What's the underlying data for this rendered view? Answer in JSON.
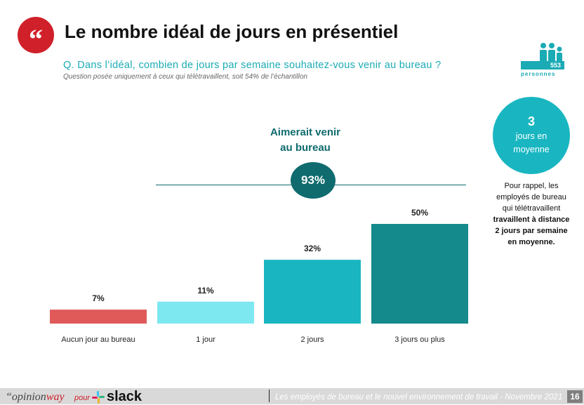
{
  "header": {
    "title": "Le nombre idéal de jours en présentiel",
    "question": "Q. Dans l’idéal, combien de jours par semaine souhaitez-vous venir au bureau ?",
    "note": "Question posée uniquement à ceux qui télétravaillent, soit 54% de l’échantillon",
    "sample_count": "553",
    "sample_label": "personnes"
  },
  "aggregate": {
    "label_line1": "Aimerait venir",
    "label_line2": "au bureau",
    "value": "93%"
  },
  "average": {
    "number": "3",
    "line1": "jours en",
    "line2": "moyenne"
  },
  "recall": {
    "normal": "Pour rappel, les employés de bureau qui télétravaillent",
    "bold": "travaillent à distance 2 jours par semaine en moyenne."
  },
  "chart_data": {
    "type": "bar",
    "categories": [
      "Aucun jour au bureau",
      "1 jour",
      "2 jours",
      "3 jours ou plus"
    ],
    "values": [
      7,
      11,
      32,
      50
    ],
    "labels": [
      "7%",
      "11%",
      "32%",
      "50%"
    ],
    "colors": [
      "#e05a5a",
      "#7de8f0",
      "#19b6c1",
      "#148a8c"
    ],
    "ylim": [
      0,
      50
    ]
  },
  "footer": {
    "brand_a": "“opinion",
    "brand_b": "way",
    "pour": "pour",
    "slack": "slack",
    "text": "Les employés de bureau et le nouvel environnement de travail - Novembre 2021",
    "page": "16"
  }
}
